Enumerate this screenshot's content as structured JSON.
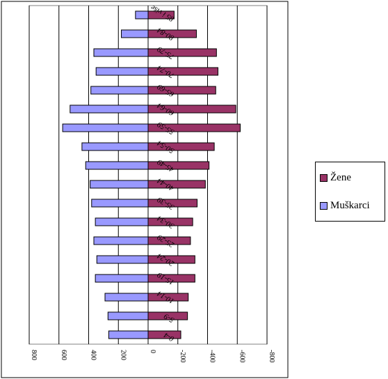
{
  "chart_data": {
    "type": "bar",
    "orientation": "horizontal",
    "categories": [
      "0-4",
      "5-9",
      "10-14",
      "15-19",
      "20-24",
      "25-29",
      "30-34",
      "35-39",
      "40-44",
      "45-49",
      "50-54",
      "55-59",
      "60-64",
      "65-69",
      "70-74",
      "75-79",
      "80-84",
      "85 i više"
    ],
    "series": [
      {
        "name": "Žene",
        "color": "#993366",
        "values": [
          -220,
          -265,
          -270,
          -315,
          -315,
          -285,
          -300,
          -330,
          -385,
          -410,
          -445,
          -620,
          -590,
          -455,
          -470,
          -460,
          -325,
          -175
        ]
      },
      {
        "name": "Muškarci",
        "color": "#9999ff",
        "values": [
          265,
          270,
          290,
          355,
          345,
          365,
          355,
          380,
          390,
          420,
          445,
          575,
          525,
          385,
          350,
          365,
          180,
          85
        ]
      }
    ],
    "xlim": [
      800,
      -800
    ],
    "xticks": [
      "800",
      "600",
      "400",
      "200",
      "0",
      "-200",
      "-400",
      "-600",
      "-800"
    ],
    "grid": true,
    "legend_position": "right"
  }
}
